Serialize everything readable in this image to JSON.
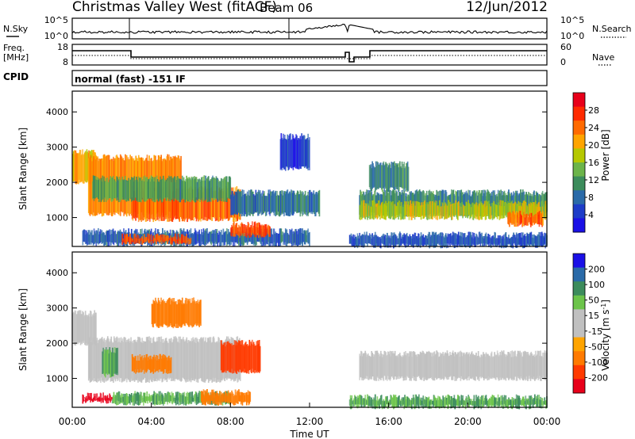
{
  "header": {
    "title": "Christmas Valley West (fitACF)",
    "beam": "Beam 06",
    "date": "12/Jun/2012"
  },
  "noise_panel": {
    "left_label": "N.Sky",
    "right_label": "N.Search",
    "left_ticks": [
      "10^5",
      "10^0"
    ],
    "right_ticks": [
      "10^5",
      "10^0"
    ]
  },
  "freq_panel": {
    "left_label_1": "Freq.",
    "left_label_2": "[MHz]",
    "right_label": "Nave",
    "left_ticks": [
      "18",
      "8"
    ],
    "right_ticks": [
      "60",
      "0"
    ]
  },
  "cpid": {
    "label": "CPID",
    "text": "normal (fast) -151 IF"
  },
  "chart_data": [
    {
      "type": "heatmap",
      "name": "power",
      "ylabel": "Slant Range [km]",
      "yticks": [
        "4000",
        "3000",
        "2000",
        "1000"
      ],
      "ylim": [
        180,
        4590
      ],
      "xlim": [
        0,
        24
      ],
      "colorbar_label": "Power [dB]",
      "colorbar_ticks": [
        "28",
        "24",
        "20",
        "16",
        "12",
        "8",
        "4"
      ],
      "colorbar_colors": [
        "#e8001a",
        "#ff2a00",
        "#ff6a00",
        "#ffa400",
        "#b6c800",
        "#6cb44a",
        "#3c8c5c",
        "#2a6aa8",
        "#1d3cc8",
        "#1a10e6"
      ],
      "features": [
        {
          "t0": 0.0,
          "t1": 1.2,
          "r0": 2000,
          "r1": 2850,
          "v": 22
        },
        {
          "t0": 0.8,
          "t1": 5.5,
          "r0": 1100,
          "r1": 2700,
          "v": 24
        },
        {
          "t0": 3.0,
          "t1": 8.5,
          "r0": 950,
          "r1": 1800,
          "v": 26
        },
        {
          "t0": 1.0,
          "t1": 8.0,
          "r0": 1500,
          "r1": 2100,
          "v": 14
        },
        {
          "t0": 8.0,
          "t1": 12.5,
          "r0": 1100,
          "r1": 1700,
          "v": 10
        },
        {
          "t0": 14.5,
          "t1": 24.0,
          "r0": 1100,
          "r1": 1700,
          "v": 12
        },
        {
          "t0": 14.5,
          "t1": 24.0,
          "r0": 1000,
          "r1": 1400,
          "v": 19
        },
        {
          "t0": 22.0,
          "t1": 23.8,
          "r0": 800,
          "r1": 1100,
          "v": 26
        },
        {
          "t0": 0.5,
          "t1": 12.0,
          "r0": 250,
          "r1": 600,
          "v": 9
        },
        {
          "t0": 2.5,
          "t1": 6.0,
          "r0": 300,
          "r1": 450,
          "v": 27
        },
        {
          "t0": 8.0,
          "t1": 10.0,
          "r0": 500,
          "r1": 800,
          "v": 27
        },
        {
          "t0": 10.5,
          "t1": 12.0,
          "r0": 2400,
          "r1": 3300,
          "v": 6
        },
        {
          "t0": 14.0,
          "t1": 24.0,
          "r0": 200,
          "r1": 500,
          "v": 8
        },
        {
          "t0": 15.0,
          "t1": 17.0,
          "r0": 1800,
          "r1": 2500,
          "v": 12
        }
      ]
    },
    {
      "type": "heatmap",
      "name": "velocity",
      "ylabel": "Slant Range [km]",
      "yticks": [
        "4000",
        "3000",
        "2000",
        "1000"
      ],
      "ylim": [
        180,
        4590
      ],
      "xlim": [
        0,
        24
      ],
      "colorbar_label": "Velocity [m s^-1]",
      "colorbar_ticks": [
        "200",
        "100",
        "50",
        "15",
        "-15",
        "-50",
        "-100",
        "-200"
      ],
      "colorbar_colors": [
        "#1a10e6",
        "#2a6aa8",
        "#3c8c5c",
        "#6cc44a",
        "#c0c0c0",
        "#c0c0c0",
        "#ffa400",
        "#ff7a00",
        "#ff3a00",
        "#e8001a"
      ],
      "features": [
        {
          "t0": 0.0,
          "t1": 1.2,
          "r0": 2000,
          "r1": 2850,
          "v": 0
        },
        {
          "t0": 0.8,
          "t1": 8.5,
          "r0": 950,
          "r1": 2100,
          "v": 0
        },
        {
          "t0": 14.5,
          "t1": 24.0,
          "r0": 1000,
          "r1": 1700,
          "v": 0
        },
        {
          "t0": 3.0,
          "t1": 5.0,
          "r0": 1200,
          "r1": 1600,
          "v": -60
        },
        {
          "t0": 7.5,
          "t1": 9.5,
          "r0": 1200,
          "r1": 2000,
          "v": -120
        },
        {
          "t0": 4.0,
          "t1": 6.5,
          "r0": 2500,
          "r1": 3200,
          "v": -60
        },
        {
          "t0": 2.0,
          "t1": 8.0,
          "r0": 300,
          "r1": 550,
          "v": 30
        },
        {
          "t0": 0.5,
          "t1": 2.0,
          "r0": 350,
          "r1": 500,
          "v": -220
        },
        {
          "t0": 14.0,
          "t1": 24.0,
          "r0": 200,
          "r1": 450,
          "v": 30
        },
        {
          "t0": 6.5,
          "t1": 9.0,
          "r0": 300,
          "r1": 600,
          "v": -60
        },
        {
          "t0": 1.5,
          "t1": 2.3,
          "r0": 1100,
          "r1": 1800,
          "v": 30
        }
      ],
      "xlabel": "Time UT",
      "xticks": [
        "00:00",
        "04:00",
        "08:00",
        "12:00",
        "16:00",
        "20:00",
        "00:00"
      ]
    }
  ]
}
